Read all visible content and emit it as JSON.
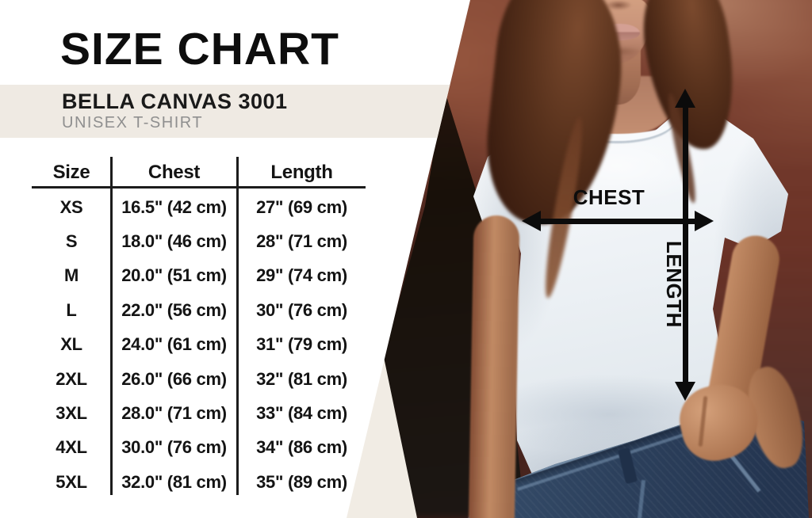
{
  "header": {
    "title": "SIZE CHART"
  },
  "product": {
    "name": "BELLA CANVAS 3001",
    "type": "UNISEX T-SHIRT"
  },
  "table": {
    "columns": [
      "Size",
      "Chest",
      "Length"
    ],
    "rows": [
      {
        "size": "XS",
        "chest": "16.5\" (42 cm)",
        "length": "27\" (69 cm)"
      },
      {
        "size": "S",
        "chest": "18.0\" (46 cm)",
        "length": "28\" (71 cm)"
      },
      {
        "size": "M",
        "chest": "20.0\" (51 cm)",
        "length": "29\" (74 cm)"
      },
      {
        "size": "L",
        "chest": "22.0\" (56 cm)",
        "length": "30\" (76 cm)"
      },
      {
        "size": "XL",
        "chest": "24.0\" (61 cm)",
        "length": "31\" (79 cm)"
      },
      {
        "size": "2XL",
        "chest": "26.0\" (66 cm)",
        "length": "32\" (81 cm)"
      },
      {
        "size": "3XL",
        "chest": "28.0\" (71 cm)",
        "length": "33\" (84 cm)"
      },
      {
        "size": "4XL",
        "chest": "30.0\" (76 cm)",
        "length": "34\" (86 cm)"
      },
      {
        "size": "5XL",
        "chest": "32.0\" (81 cm)",
        "length": "35\" (89 cm)"
      }
    ]
  },
  "diagram": {
    "chest_label": "CHEST",
    "length_label": "LENGTH"
  },
  "colors": {
    "band_bg": "#EFEAE3",
    "ivory_wedge": "#F1ECE4",
    "text": "#141414",
    "arrow": "#0B0B0B",
    "tee_white": "#F4F7FA",
    "denim": "#3C5674",
    "brick": "#6E3528"
  },
  "chart_data": {
    "type": "table",
    "title": "SIZE CHART",
    "columns": [
      "Size",
      "Chest",
      "Length"
    ],
    "rows": [
      [
        "XS",
        "16.5\" (42 cm)",
        "27\" (69 cm)"
      ],
      [
        "S",
        "18.0\" (46 cm)",
        "28\" (71 cm)"
      ],
      [
        "M",
        "20.0\" (51 cm)",
        "29\" (74 cm)"
      ],
      [
        "L",
        "22.0\" (56 cm)",
        "30\" (76 cm)"
      ],
      [
        "XL",
        "24.0\" (61 cm)",
        "31\" (79 cm)"
      ],
      [
        "2XL",
        "26.0\" (66 cm)",
        "32\" (81 cm)"
      ],
      [
        "3XL",
        "28.0\" (71 cm)",
        "33\" (84 cm)"
      ],
      [
        "4XL",
        "30.0\" (76 cm)",
        "34\" (86 cm)"
      ],
      [
        "5XL",
        "32.0\" (81 cm)",
        "35\" (89 cm)"
      ]
    ]
  }
}
